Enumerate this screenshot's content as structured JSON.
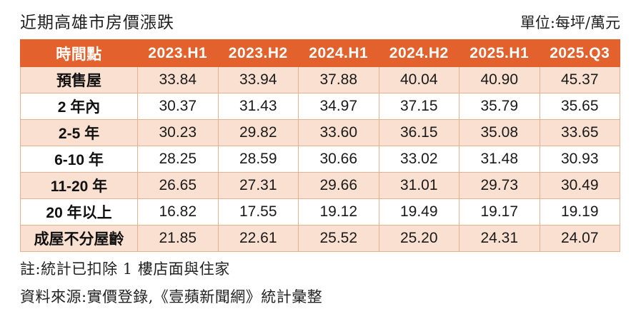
{
  "page": {
    "title": "近期高雄市房價漲跌",
    "unit_label": "單位:每坪/萬元",
    "note": "註:統計已扣除 1 樓店面與住家",
    "source": "資料來源:實價登錄,《壹蘋新聞網》統計彙整"
  },
  "colors": {
    "header_bg": "#e2612c",
    "header_text": "#ffffff",
    "row_alt_bg": "#fae0d0",
    "row_bg": "#ffffff",
    "border": "#e7b191",
    "body_text": "#1a1a1a"
  },
  "chart_data": {
    "type": "table",
    "title": "近期高雄市房價漲跌",
    "unit": "每坪/萬元",
    "columns": [
      "時間點",
      "2023.H1",
      "2023.H2",
      "2024.H1",
      "2024.H2",
      "2025.H1",
      "2025.Q3"
    ],
    "rows": [
      {
        "label": "預售屋",
        "values": [
          "33.84",
          "33.94",
          "37.88",
          "40.04",
          "40.90",
          "45.37"
        ]
      },
      {
        "label": "2 年內",
        "values": [
          "30.37",
          "31.43",
          "34.97",
          "37.15",
          "35.79",
          "35.65"
        ]
      },
      {
        "label": "2-5 年",
        "values": [
          "30.23",
          "29.82",
          "33.60",
          "36.15",
          "35.08",
          "33.65"
        ]
      },
      {
        "label": "6-10 年",
        "values": [
          "28.25",
          "28.59",
          "30.66",
          "33.02",
          "31.48",
          "30.93"
        ]
      },
      {
        "label": "11-20 年",
        "values": [
          "26.65",
          "27.31",
          "29.66",
          "31.01",
          "29.73",
          "30.49"
        ]
      },
      {
        "label": "20 年以上",
        "values": [
          "16.82",
          "17.55",
          "19.12",
          "19.49",
          "19.17",
          "19.19"
        ]
      },
      {
        "label": "成屋不分屋齡",
        "values": [
          "21.85",
          "22.61",
          "25.52",
          "25.20",
          "24.31",
          "24.07"
        ]
      }
    ]
  }
}
